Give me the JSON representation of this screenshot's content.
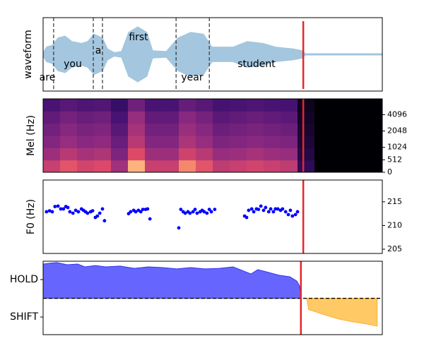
{
  "chart_data": [
    {
      "type": "waveform",
      "ylabel": "waveform",
      "color": "#a4c6df",
      "xlim": [
        0,
        100
      ],
      "ylim": [
        -1,
        1
      ],
      "x": [
        0,
        1.0,
        2.7,
        4.4,
        6.5,
        8.5,
        11.3,
        13.1,
        15.0,
        17.5,
        19.0,
        21.0,
        23.1,
        25.2,
        27.9,
        30.6,
        32.3,
        36.3,
        39.8,
        43.5,
        47.3,
        49.8,
        56.0,
        60.2,
        64.8,
        68.5,
        73.8,
        76.5,
        77.3,
        100
      ],
      "values": [
        0.05,
        0.2,
        0.25,
        0.45,
        0.5,
        0.35,
        0.3,
        0.35,
        0.55,
        0.45,
        0.15,
        0.05,
        0.08,
        0.6,
        0.75,
        0.6,
        0.1,
        0.08,
        0.45,
        0.6,
        0.55,
        0.2,
        0.2,
        0.35,
        0.3,
        0.2,
        0.15,
        0.1,
        0.02,
        0.02
      ],
      "words": [
        "are",
        "you",
        "a",
        "first",
        "year",
        "student"
      ],
      "boundaries": [
        3.1,
        14.8,
        17.5,
        39.2,
        49.0
      ],
      "marker_line": 76.7,
      "marker_color": "#e8262a"
    },
    {
      "type": "heatmap",
      "ylabel": "Mel (Hz)",
      "colormap": "magma",
      "yscale": "mel",
      "xlim": [
        0,
        100
      ],
      "ylim": [
        0,
        8000
      ],
      "yticks": [
        0,
        512,
        1024,
        2048,
        4096
      ],
      "ytick_side": "right",
      "values": [
        [
          0.68,
          0.77,
          0.71,
          0.74,
          0.56,
          0.92,
          0.68,
          0.68,
          0.86,
          0.77,
          0.65,
          0.68,
          0.71,
          0.68,
          0.65,
          0.2,
          0,
          0,
          0,
          0
        ],
        [
          0.55,
          0.63,
          0.58,
          0.6,
          0.45,
          0.75,
          0.55,
          0.55,
          0.7,
          0.63,
          0.53,
          0.55,
          0.58,
          0.55,
          0.53,
          0.15,
          0,
          0,
          0,
          0
        ],
        [
          0.47,
          0.53,
          0.49,
          0.51,
          0.39,
          0.63,
          0.47,
          0.47,
          0.59,
          0.53,
          0.45,
          0.47,
          0.49,
          0.47,
          0.45,
          0.12,
          0,
          0,
          0,
          0
        ],
        [
          0.42,
          0.48,
          0.44,
          0.46,
          0.34,
          0.58,
          0.42,
          0.42,
          0.54,
          0.48,
          0.4,
          0.42,
          0.44,
          0.42,
          0.4,
          0.1,
          0,
          0,
          0,
          0
        ],
        [
          0.37,
          0.43,
          0.39,
          0.41,
          0.29,
          0.53,
          0.37,
          0.37,
          0.49,
          0.43,
          0.35,
          0.37,
          0.39,
          0.37,
          0.35,
          0.08,
          0,
          0,
          0,
          0
        ],
        [
          0.29,
          0.34,
          0.31,
          0.32,
          0.23,
          0.41,
          0.29,
          0.29,
          0.38,
          0.34,
          0.28,
          0.29,
          0.31,
          0.29,
          0.28,
          0.06,
          0,
          0,
          0,
          0
        ]
      ],
      "marker_line": 76.7,
      "marker_color": "#e8262a"
    },
    {
      "type": "scatter",
      "ylabel": "F0 (Hz)",
      "color": "#0000ff",
      "xlim": [
        0,
        100
      ],
      "ylim": [
        204.1,
        219.6
      ],
      "yticks": [
        205,
        210,
        215
      ],
      "ytick_side": "right",
      "x": [
        1.0,
        1.9,
        2.7,
        3.5,
        4.4,
        5.2,
        6.0,
        6.7,
        7.3,
        7.9,
        8.8,
        9.6,
        10.4,
        11.3,
        11.9,
        12.5,
        13.1,
        14.0,
        14.6,
        15.4,
        16.0,
        16.7,
        17.5,
        18.1,
        25.2,
        25.8,
        26.7,
        27.3,
        28.1,
        28.8,
        29.4,
        30.2,
        30.8,
        31.5,
        40.0,
        40.6,
        41.3,
        41.9,
        42.7,
        43.3,
        44.2,
        44.8,
        45.4,
        46.3,
        46.9,
        47.5,
        48.3,
        49.0,
        49.6,
        50.6,
        59.4,
        60.0,
        60.6,
        61.5,
        62.1,
        62.9,
        63.5,
        64.2,
        65.0,
        65.6,
        66.5,
        67.1,
        67.9,
        68.5,
        69.2,
        70.0,
        70.6,
        71.5,
        72.3,
        72.9,
        73.5,
        74.4,
        75.0
      ],
      "values": [
        212.9,
        213.1,
        212.9,
        214.0,
        214.1,
        213.5,
        213.5,
        214.0,
        213.8,
        212.9,
        212.6,
        213.2,
        212.9,
        213.5,
        213.2,
        212.9,
        212.6,
        212.9,
        213.1,
        211.7,
        212.0,
        212.6,
        213.5,
        211.0,
        212.5,
        212.9,
        213.2,
        212.9,
        213.2,
        212.9,
        213.4,
        213.4,
        213.5,
        211.4,
        209.5,
        213.4,
        212.9,
        212.6,
        212.9,
        212.6,
        212.9,
        213.4,
        212.6,
        212.9,
        213.2,
        212.9,
        212.6,
        213.4,
        212.9,
        213.4,
        212.0,
        211.7,
        213.2,
        213.5,
        212.9,
        213.5,
        213.4,
        214.1,
        213.2,
        213.8,
        212.9,
        213.5,
        212.9,
        213.5,
        213.5,
        213.2,
        213.5,
        212.9,
        212.3,
        213.2,
        212.0,
        212.3,
        212.9
      ],
      "marker_line": 76.7,
      "marker_color": "#e8262a"
    },
    {
      "type": "area",
      "xlim": [
        0,
        100
      ],
      "ylim": [
        -1.94,
        1.98
      ],
      "yticks": [
        {
          "value": 1,
          "label": "HOLD"
        },
        {
          "value": -1,
          "label": "SHIFT"
        }
      ],
      "ytick_side": "left",
      "hline": 0,
      "series": [
        {
          "color": "#6666ff",
          "edge": "#3333ee",
          "x": [
            0,
            1.9,
            4.0,
            7.1,
            10.2,
            12.3,
            15.4,
            18.5,
            22.7,
            26.9,
            31.0,
            35.2,
            39.4,
            43.5,
            47.7,
            51.9,
            56.0,
            59.2,
            61.3,
            63.3,
            66.5,
            69.6,
            72.7,
            74.8,
            75.6,
            76.0
          ],
          "values": [
            1.83,
            1.87,
            1.91,
            1.79,
            1.83,
            1.68,
            1.75,
            1.68,
            1.72,
            1.6,
            1.68,
            1.64,
            1.57,
            1.64,
            1.57,
            1.6,
            1.68,
            1.45,
            1.3,
            1.53,
            1.38,
            1.23,
            1.15,
            0.92,
            0.66,
            0.17
          ]
        },
        {
          "color": "#ffc966",
          "edge": "#ffb033",
          "x": [
            77.7,
            78.3,
            80.0,
            83.1,
            87.3,
            91.5,
            95.6,
            98.5
          ],
          "values": [
            0,
            -0.6,
            -0.7,
            -0.89,
            -1.11,
            -1.26,
            -1.38,
            -1.49
          ]
        }
      ],
      "marker_line": 76.0,
      "marker_color": "#e8262a"
    }
  ]
}
